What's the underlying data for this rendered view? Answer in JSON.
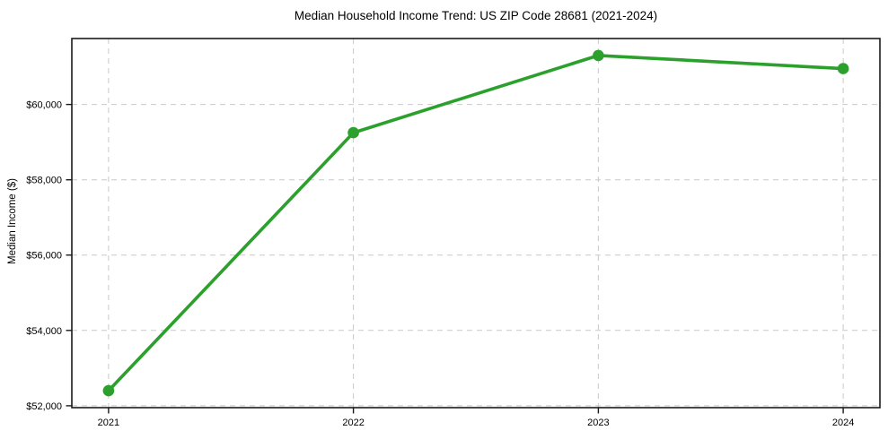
{
  "chart_data": {
    "type": "line",
    "title": "Median Household Income Trend: US ZIP Code 28681 (2021-2024)",
    "xlabel": "",
    "ylabel": "Median Income ($)",
    "x": [
      2021,
      2022,
      2023,
      2024
    ],
    "x_tick_labels": [
      "2021",
      "2022",
      "2023",
      "2024"
    ],
    "series": [
      {
        "name": "Median Household Income",
        "values": [
          52400,
          59250,
          61300,
          60950
        ]
      }
    ],
    "y_ticks": [
      52000,
      54000,
      56000,
      58000,
      60000
    ],
    "y_tick_labels": [
      "$52,000",
      "$54,000",
      "$56,000",
      "$58,000",
      "$60,000"
    ],
    "xlim": [
      2020.85,
      2024.15
    ],
    "ylim": [
      51950,
      61750
    ],
    "grid": "dashed-both-axes",
    "legend": "none",
    "marker": "circle",
    "colors": {
      "line": "#2ca02c",
      "marker": "#2ca02c",
      "grid": "#c9c9c9",
      "axis": "#1a1a1a",
      "text": "#000000",
      "background": "#ffffff"
    }
  }
}
